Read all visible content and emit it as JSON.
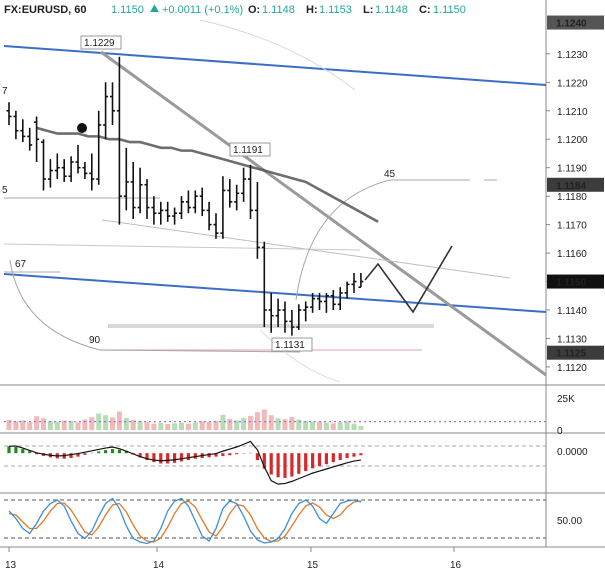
{
  "header": {
    "symbol": "FX:EURUSD, 60",
    "last": "1.1150",
    "change": "+0.0011 (+0.1%)",
    "o_label": "O:",
    "o_value": "1.1148",
    "h_label": "H:",
    "h_value": "1.1153",
    "l_label": "L:",
    "l_value": "1.1148",
    "c_label": "C:",
    "c_value": "1.1150"
  },
  "colors": {
    "up": "#26a69a",
    "down": "#ef5350",
    "trend": "#3a6fc4",
    "ma": "#555555",
    "tag_dark": "#3c3c3c",
    "hist_up": "#1e8a1e",
    "hist_down": "#d42a2a",
    "stoch_k": "#3b8fd9",
    "stoch_d": "#e07a2a"
  },
  "chart_data": {
    "type": "candlestick",
    "x_ticks": [
      "13",
      "14",
      "15",
      "16"
    ],
    "price_axis": {
      "ticks": [
        "1.1230",
        "1.1220",
        "1.1210",
        "1.1200",
        "1.1190",
        "1.1180",
        "1.1170",
        "1.1160",
        "1.1150",
        "1.1140",
        "1.1130",
        "1.1120"
      ],
      "ylim": [
        1.1114,
        1.1244
      ]
    },
    "tags": {
      "current": "1.1150",
      "level_a": "1.1184",
      "level_b": "1.1125",
      "top_partial": "1.1240"
    },
    "callouts": {
      "high_1": "1.1229",
      "high_2": "1.1191",
      "low_1": "1.1131"
    },
    "fib_labels": [
      "45",
      "67",
      "90"
    ],
    "edge_labels": [
      "7",
      "5"
    ],
    "ohlc": [
      [
        1.121,
        1.1213,
        1.1205,
        1.1208
      ],
      [
        1.1208,
        1.121,
        1.12,
        1.1203
      ],
      [
        1.1203,
        1.1207,
        1.1199,
        1.1201
      ],
      [
        1.1201,
        1.1204,
        1.1196,
        1.1198
      ],
      [
        1.1206,
        1.1208,
        1.1192,
        1.12
      ],
      [
        1.1199,
        1.12,
        1.1182,
        1.1186
      ],
      [
        1.1186,
        1.1193,
        1.1183,
        1.1189
      ],
      [
        1.1189,
        1.1195,
        1.1186,
        1.119
      ],
      [
        1.119,
        1.1193,
        1.1185,
        1.1187
      ],
      [
        1.1187,
        1.1194,
        1.1185,
        1.1192
      ],
      [
        1.1192,
        1.1198,
        1.1188,
        1.119
      ],
      [
        1.119,
        1.1192,
        1.1186,
        1.1188
      ],
      [
        1.1188,
        1.1195,
        1.1182,
        1.1186
      ],
      [
        1.1186,
        1.121,
        1.1184,
        1.1205
      ],
      [
        1.1205,
        1.122,
        1.12,
        1.1215
      ],
      [
        1.1215,
        1.122,
        1.1205,
        1.121
      ],
      [
        1.121,
        1.1229,
        1.117,
        1.118
      ],
      [
        1.118,
        1.1197,
        1.1175,
        1.1185
      ],
      [
        1.1185,
        1.1192,
        1.1172,
        1.1176
      ],
      [
        1.1176,
        1.119,
        1.1174,
        1.1184
      ],
      [
        1.1184,
        1.1186,
        1.1172,
        1.1176
      ],
      [
        1.1176,
        1.118,
        1.117,
        1.1174
      ],
      [
        1.1174,
        1.1178,
        1.117,
        1.1175
      ],
      [
        1.1175,
        1.1178,
        1.1171,
        1.1173
      ],
      [
        1.1173,
        1.1176,
        1.117,
        1.1174
      ],
      [
        1.1174,
        1.118,
        1.1172,
        1.1178
      ],
      [
        1.1178,
        1.1182,
        1.1174,
        1.1176
      ],
      [
        1.1176,
        1.1182,
        1.1174,
        1.118
      ],
      [
        1.118,
        1.1183,
        1.1173,
        1.1175
      ],
      [
        1.1175,
        1.1178,
        1.1168,
        1.117
      ],
      [
        1.117,
        1.1174,
        1.1165,
        1.1167
      ],
      [
        1.1167,
        1.1187,
        1.1165,
        1.1182
      ],
      [
        1.1182,
        1.1186,
        1.1176,
        1.1178
      ],
      [
        1.1178,
        1.1184,
        1.1175,
        1.1181
      ],
      [
        1.1181,
        1.119,
        1.1178,
        1.1186
      ],
      [
        1.1186,
        1.1191,
        1.1172,
        1.1175
      ],
      [
        1.1175,
        1.1185,
        1.1158,
        1.1162
      ],
      [
        1.1162,
        1.1164,
        1.1134,
        1.114
      ],
      [
        1.114,
        1.1146,
        1.1132,
        1.1138
      ],
      [
        1.1138,
        1.1144,
        1.1134,
        1.114
      ],
      [
        1.114,
        1.1143,
        1.1132,
        1.1136
      ],
      [
        1.1136,
        1.114,
        1.1131,
        1.1134
      ],
      [
        1.1134,
        1.1142,
        1.1133,
        1.114
      ],
      [
        1.114,
        1.1143,
        1.1136,
        1.1141
      ],
      [
        1.1141,
        1.1146,
        1.1139,
        1.1144
      ],
      [
        1.1144,
        1.1146,
        1.114,
        1.1143
      ],
      [
        1.1143,
        1.1146,
        1.1139,
        1.1145
      ],
      [
        1.1145,
        1.1147,
        1.114,
        1.1142
      ],
      [
        1.1142,
        1.1148,
        1.114,
        1.1146
      ],
      [
        1.1146,
        1.115,
        1.1144,
        1.1149
      ],
      [
        1.1149,
        1.1153,
        1.1146,
        1.115
      ],
      [
        1.1148,
        1.1153,
        1.1148,
        1.115
      ]
    ],
    "moving_average": [
      1.1204,
      1.1203,
      1.1202,
      1.1202,
      1.1202,
      1.1201,
      1.1201,
      1.12,
      1.12,
      1.1199,
      1.1199,
      1.1198,
      1.1197,
      1.1197,
      1.1196,
      1.1196,
      1.1195,
      1.1194,
      1.1193,
      1.1192,
      1.1191,
      1.119,
      1.1189,
      1.1188,
      1.1187,
      1.1186,
      1.1185,
      1.1183,
      1.1181,
      1.1179,
      1.1177,
      1.1175,
      1.1173,
      1.1171
    ],
    "volume_axis": {
      "ticks": [
        "25K",
        "0"
      ],
      "ylim": [
        0,
        25000
      ]
    },
    "volume": [
      6000,
      5200,
      5800,
      4600,
      8200,
      7000,
      5200,
      4800,
      5600,
      5400,
      4400,
      6200,
      7600,
      9800,
      8800,
      7400,
      11000,
      7200,
      6000,
      5600,
      4600,
      3800,
      4200,
      3600,
      4000,
      4400,
      3800,
      4600,
      5200,
      4800,
      5400,
      9000,
      6600,
      5800,
      7200,
      8400,
      10600,
      12200,
      8800,
      7000,
      6400,
      7800,
      6200,
      5400,
      5000,
      4800,
      4400,
      4000,
      4600,
      5200,
      3800,
      2400
    ],
    "volume_avg": 5000,
    "macd_axis": {
      "ticks": [
        "0.0000"
      ],
      "ylim": [
        -0.0011,
        0.0005
      ]
    },
    "macd_hist": [
      0.0002,
      0.00018,
      0.00012,
      6e-05,
      -3e-05,
      -8e-05,
      -0.00012,
      -0.00015,
      -0.00016,
      -0.00014,
      -0.0001,
      -5e-05,
      1e-05,
      5e-05,
      9e-05,
      0.00012,
      0.0001,
      5e-05,
      -4e-05,
      -0.00012,
      -0.0002,
      -0.00026,
      -0.0003,
      -0.0003,
      -0.00028,
      -0.00024,
      -0.0002,
      -0.00016,
      -0.00014,
      -0.00012,
      -0.0001,
      -8e-05,
      -6e-05,
      -3e-05,
      -1e-05,
      1e-05,
      -0.0002,
      -0.00045,
      -0.00062,
      -0.0007,
      -0.00072,
      -0.00068,
      -0.0006,
      -0.00052,
      -0.00044,
      -0.00038,
      -0.00032,
      -0.00026,
      -0.0002,
      -0.00014,
      -0.0001,
      -6e-05
    ],
    "macd_line": [
      0.0002,
      0.00021,
      0.00015,
      8e-05,
      1e-05,
      -3e-05,
      -6e-05,
      -8e-05,
      -7e-05,
      -4e-05,
      -1e-05,
      3e-05,
      7e-05,
      0.00011,
      0.00015,
      0.00018,
      0.00013,
      6e-05,
      -2e-05,
      -0.0001,
      -0.00016,
      -0.0002,
      -0.00022,
      -0.00021,
      -0.00019,
      -0.00016,
      -0.00013,
      -0.0001,
      -7e-05,
      -4e-05,
      -1e-05,
      6e-05,
      0.00012,
      0.00018,
      0.00026,
      0.00034,
      0.0001,
      -0.0004,
      -0.0008,
      -0.0009,
      -0.00088,
      -0.00082,
      -0.00074,
      -0.00066,
      -0.00058,
      -0.00052,
      -0.00046,
      -0.0004,
      -0.00034,
      -0.00028,
      -0.00023,
      -0.0002
    ],
    "stoch_axis": {
      "ticks": [
        "50.00"
      ],
      "ylim": [
        0,
        100
      ]
    },
    "stoch_k": [
      70,
      55,
      35,
      25,
      45,
      70,
      85,
      92,
      80,
      50,
      25,
      15,
      30,
      60,
      85,
      95,
      75,
      40,
      15,
      8,
      5,
      10,
      35,
      70,
      90,
      95,
      80,
      50,
      20,
      10,
      35,
      75,
      90,
      85,
      60,
      30,
      12,
      6,
      8,
      15,
      35,
      65,
      85,
      92,
      80,
      55,
      45,
      65,
      85,
      90,
      92,
      88
    ],
    "stoch_d": [
      65,
      62,
      48,
      35,
      35,
      50,
      70,
      85,
      86,
      72,
      50,
      28,
      22,
      38,
      62,
      82,
      85,
      68,
      42,
      20,
      10,
      8,
      16,
      38,
      65,
      85,
      90,
      78,
      52,
      28,
      20,
      38,
      65,
      83,
      80,
      62,
      35,
      16,
      9,
      10,
      20,
      40,
      62,
      80,
      86,
      78,
      62,
      55,
      62,
      78,
      88,
      90
    ]
  }
}
